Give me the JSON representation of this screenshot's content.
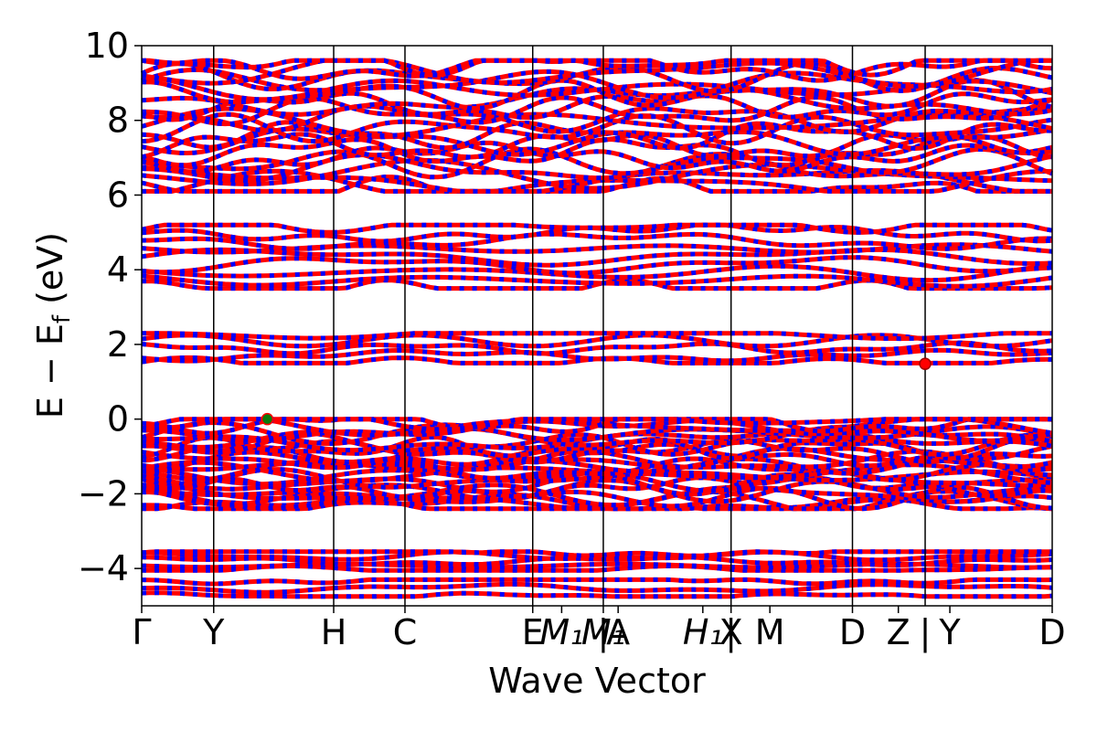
{
  "chart_data": {
    "type": "line",
    "title": "",
    "xlabel": "Wave Vector",
    "ylabel": "E − E",
    "ylabel_sub": "f",
    "ylabel_unit": " (eV)",
    "ylim": [
      -5,
      10
    ],
    "yticks": [
      -4,
      -2,
      0,
      2,
      4,
      6,
      8,
      10
    ],
    "ytick_labels": [
      "−4",
      "−2",
      "0",
      "2",
      "4",
      "6",
      "8",
      "10"
    ],
    "xlim": [
      0,
      12.9
    ],
    "kpoints": [
      {
        "x": 0.0,
        "label": "Γ",
        "italic": false
      },
      {
        "x": 1.02,
        "label": "Y",
        "italic": false
      },
      {
        "x": 2.72,
        "label": "H",
        "italic": false
      },
      {
        "x": 3.73,
        "label": "C",
        "italic": false
      },
      {
        "x": 5.54,
        "label": "E",
        "italic": false
      },
      {
        "x": 5.95,
        "label": "M₁",
        "italic": true
      },
      {
        "x": 6.54,
        "label": "M₁",
        "italic": true
      },
      {
        "x": 6.54,
        "label": "|",
        "italic": false
      },
      {
        "x": 6.75,
        "label": "A",
        "italic": false
      },
      {
        "x": 7.95,
        "label": "H₁",
        "italic": true
      },
      {
        "x": 8.35,
        "label": "X",
        "italic": false
      },
      {
        "x": 8.35,
        "label": "|",
        "italic": false
      },
      {
        "x": 8.9,
        "label": "M",
        "italic": false
      },
      {
        "x": 10.07,
        "label": "D",
        "italic": false
      },
      {
        "x": 10.72,
        "label": "Z",
        "italic": false
      },
      {
        "x": 11.1,
        "label": "|",
        "italic": false
      },
      {
        "x": 11.45,
        "label": "Y",
        "italic": false
      },
      {
        "x": 12.9,
        "label": "D",
        "italic": false
      }
    ],
    "segment_lines": [
      1.02,
      2.72,
      3.73,
      5.54,
      6.54,
      8.35,
      10.07,
      11.1
    ],
    "band_groups": [
      {
        "name": "deep-valence-low",
        "emin": -4.75,
        "emax": -4.3,
        "count": 3
      },
      {
        "name": "deep-valence-high",
        "emin": -4.05,
        "emax": -3.55,
        "count": 5
      },
      {
        "name": "valence",
        "emin": -2.4,
        "emax": 0.0,
        "count": 26
      },
      {
        "name": "conduction-1",
        "emin": 1.5,
        "emax": 2.3,
        "count": 5
      },
      {
        "name": "conduction-2",
        "emin": 3.5,
        "emax": 5.2,
        "count": 9
      },
      {
        "name": "conduction-3",
        "emin": 6.1,
        "emax": 9.6,
        "count": 24
      }
    ],
    "colors": {
      "band_primary": "#ff0000",
      "band_secondary": "#0000ff",
      "vbm_marker": "#0a7a0a",
      "cbm_marker": "#ff0000"
    },
    "vbm": {
      "x": 1.78,
      "y": 0.0
    },
    "cbm": {
      "x": 11.1,
      "y": 1.48
    },
    "grid": false,
    "legend": "none"
  }
}
